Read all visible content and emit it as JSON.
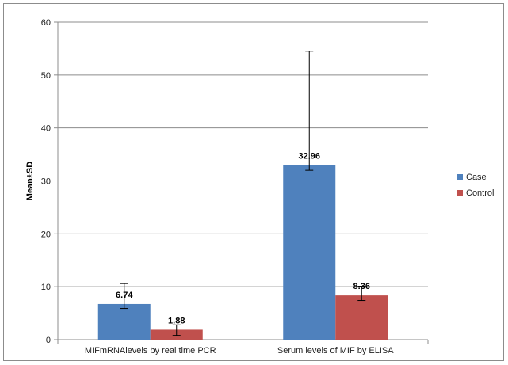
{
  "chart_data": {
    "type": "bar",
    "title": "",
    "xlabel": "",
    "ylabel": "Mean±SD",
    "ylim": [
      0,
      60
    ],
    "yticks": [
      0,
      10,
      20,
      30,
      40,
      50,
      60
    ],
    "grid": true,
    "legend_position": "right",
    "categories": [
      "MIFmRNAlevels by real time PCR",
      "Serum levels of MIF by ELISA"
    ],
    "series": [
      {
        "name": "Case",
        "color": "#4f81bd",
        "values": [
          6.74,
          32.96
        ],
        "labels": [
          "6.74",
          "32.96"
        ],
        "err_low": [
          5.9,
          32.0
        ],
        "err_high": [
          10.6,
          54.5
        ]
      },
      {
        "name": "Control",
        "color": "#c0504d",
        "values": [
          1.88,
          8.36
        ],
        "labels": [
          "1.88",
          "8.36"
        ],
        "err_low": [
          0.8,
          7.4
        ],
        "err_high": [
          2.8,
          10.1
        ]
      }
    ]
  }
}
